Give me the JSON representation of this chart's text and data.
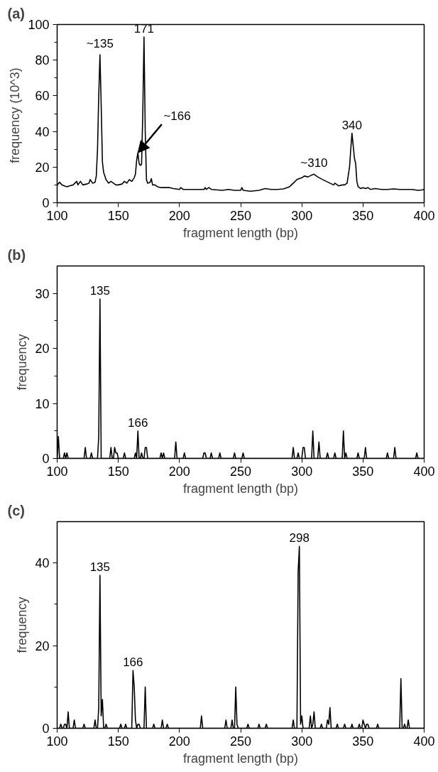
{
  "chart_data": [
    {
      "type": "line",
      "title": "(a)",
      "xlabel": "fragment length (bp)",
      "ylabel": "frequency  (10^3)",
      "xlim": [
        100,
        400
      ],
      "ylim": [
        0,
        100
      ],
      "xticks": [
        100,
        150,
        200,
        250,
        300,
        350,
        400
      ],
      "yticks": [
        0,
        20,
        40,
        60,
        80,
        100
      ],
      "series": [
        {
          "color": "#000000",
          "x": [
            100,
            102,
            104,
            108,
            110,
            113,
            116,
            117,
            119,
            121,
            124,
            126,
            127,
            129,
            131,
            132,
            133,
            134,
            135,
            136,
            137,
            138,
            140,
            142,
            144,
            146,
            148,
            150,
            153,
            155,
            157,
            159,
            161,
            163,
            164,
            165,
            166,
            167,
            168,
            169,
            170,
            171,
            172,
            173,
            174,
            176,
            177,
            178,
            180,
            182,
            185,
            188,
            192,
            195,
            200,
            201,
            203,
            210,
            215,
            220,
            221,
            222,
            224,
            226,
            235,
            240,
            245,
            250,
            251,
            252,
            258,
            265,
            270,
            275,
            280,
            285,
            290,
            293,
            296,
            300,
            302,
            305,
            308,
            310,
            313,
            317,
            320,
            323,
            326,
            327,
            330,
            333,
            335,
            337,
            339,
            340,
            341,
            342,
            343,
            344,
            345,
            346,
            348,
            350,
            352,
            354,
            356,
            360,
            365,
            370,
            375,
            380,
            385,
            390,
            395,
            398,
            400
          ],
          "values": [
            10,
            11.5,
            10,
            9,
            9.5,
            10,
            12,
            10,
            12,
            10,
            10.5,
            11,
            13,
            11,
            11.5,
            15,
            30,
            60,
            83,
            55,
            23,
            17,
            13,
            11,
            12,
            11,
            10,
            10,
            10.5,
            12,
            11,
            13,
            12,
            14,
            16,
            24,
            28,
            22,
            21,
            21.5,
            50,
            93,
            40,
            13,
            11,
            11.5,
            13.5,
            10,
            10,
            9,
            8.5,
            8.5,
            8.5,
            8,
            7.5,
            8.5,
            7.5,
            7.5,
            7.5,
            7.5,
            8.5,
            7.5,
            8.5,
            7.5,
            7,
            7.5,
            7,
            7,
            8.5,
            7,
            6.5,
            7,
            8,
            7.5,
            7.5,
            7.8,
            9,
            11,
            13,
            14,
            15,
            14.5,
            15.5,
            16,
            14.5,
            13,
            12,
            11,
            10,
            11,
            9.5,
            10,
            10,
            11,
            20,
            30,
            39,
            32,
            25,
            22,
            12,
            9,
            8,
            8.5,
            8,
            8.5,
            7.5,
            8,
            7.5,
            7.5,
            7.8,
            7.5,
            7.5,
            7.5,
            7,
            7.2,
            7.5
          ]
        }
      ],
      "annotations": [
        {
          "text": "~135",
          "x": 135,
          "y": 83
        },
        {
          "text": "171",
          "x": 171,
          "y": 93
        },
        {
          "text": "~166",
          "x": 166,
          "y": 28
        },
        {
          "text": "~310",
          "x": 310,
          "y": 16
        },
        {
          "text": "340",
          "x": 341,
          "y": 39
        }
      ]
    },
    {
      "type": "line",
      "title": "(b)",
      "xlabel": "fragment length (bp)",
      "ylabel": "frequency",
      "xlim": [
        100,
        400
      ],
      "ylim": [
        0,
        35
      ],
      "xticks": [
        100,
        150,
        200,
        250,
        300,
        350,
        400
      ],
      "yticks": [
        0,
        10,
        20,
        30
      ],
      "series": [
        {
          "color": "#000000",
          "x": [
            100,
            101,
            102,
            105,
            106,
            107,
            108,
            109,
            122,
            123,
            124,
            127,
            128,
            129,
            133,
            134,
            135,
            136,
            143,
            144,
            145,
            146,
            147,
            148,
            149,
            150,
            154,
            155,
            156,
            163,
            164,
            165,
            166,
            167,
            168,
            169,
            170,
            171,
            172,
            173,
            174,
            184,
            185,
            186,
            187,
            188,
            196,
            197,
            198,
            203,
            204,
            205,
            219,
            220,
            221,
            222,
            225,
            226,
            227,
            232,
            233,
            234,
            244,
            245,
            246,
            251,
            252,
            253,
            292,
            293,
            294,
            296,
            297,
            298,
            300,
            301,
            302,
            303,
            308,
            309,
            310,
            313,
            314,
            315,
            320,
            321,
            322,
            326,
            327,
            328,
            333,
            334,
            335,
            336,
            337,
            345,
            346,
            347,
            351,
            352,
            353,
            369,
            370,
            371,
            375,
            376,
            377,
            393,
            394,
            395,
            400
          ],
          "values": [
            0,
            4,
            0,
            0,
            1,
            0,
            1,
            0,
            0,
            2,
            0,
            0,
            1,
            0,
            0,
            4,
            29,
            0,
            0,
            2,
            0,
            0,
            2,
            1,
            1,
            0,
            0,
            1,
            0,
            0,
            1,
            0,
            5,
            0,
            0,
            1,
            0,
            0,
            2,
            2,
            0,
            0,
            1,
            0,
            1,
            0,
            0,
            3,
            0,
            0,
            1,
            0,
            0,
            1,
            1,
            0,
            0,
            1,
            0,
            0,
            1,
            0,
            0,
            1,
            0,
            0,
            1,
            0,
            0,
            2,
            0,
            0,
            1,
            0,
            0,
            2,
            2,
            0,
            0,
            5,
            0,
            0,
            3,
            0,
            0,
            1,
            0,
            0,
            1,
            0,
            0,
            5,
            0,
            1,
            0,
            0,
            1,
            0,
            0,
            2,
            0,
            0,
            1,
            0,
            0,
            2,
            0,
            0,
            1,
            0,
            0
          ]
        }
      ],
      "annotations": [
        {
          "text": "135",
          "x": 135,
          "y": 29
        },
        {
          "text": "166",
          "x": 166,
          "y": 5
        }
      ]
    },
    {
      "type": "line",
      "title": "(c)",
      "xlabel": "fragment length (bp)",
      "ylabel": "frequency",
      "xlim": [
        100,
        400
      ],
      "ylim": [
        0,
        50
      ],
      "xticks": [
        100,
        150,
        200,
        250,
        300,
        350,
        400
      ],
      "yticks": [
        0,
        20,
        40
      ],
      "series": [
        {
          "color": "#000000",
          "x": [
            100,
            102,
            103,
            104,
            105,
            106,
            107,
            108,
            109,
            110,
            113,
            114,
            115,
            121,
            122,
            123,
            130,
            131,
            132,
            133,
            134,
            135,
            136,
            137,
            138,
            139,
            140,
            141,
            151,
            152,
            153,
            155,
            156,
            157,
            161,
            162,
            163,
            164,
            165,
            166,
            167,
            168,
            171,
            172,
            173,
            178,
            179,
            180,
            185,
            186,
            187,
            189,
            190,
            191,
            217,
            218,
            219,
            237,
            238,
            239,
            242,
            243,
            244,
            245,
            246,
            247,
            248,
            255,
            256,
            257,
            264,
            265,
            266,
            270,
            271,
            272,
            292,
            293,
            294,
            296,
            297,
            298,
            299,
            300,
            301,
            306,
            307,
            308,
            309,
            310,
            311,
            315,
            316,
            317,
            320,
            321,
            322,
            323,
            324,
            328,
            329,
            330,
            334,
            335,
            336,
            340,
            341,
            342,
            346,
            347,
            348,
            349,
            350,
            351,
            352,
            353,
            354,
            355,
            361,
            362,
            363,
            380,
            381,
            382,
            383,
            384,
            385,
            386,
            387,
            388,
            400
          ],
          "values": [
            0,
            0,
            1,
            0,
            0,
            1,
            1,
            0,
            4,
            0,
            0,
            2,
            0,
            0,
            1,
            0,
            0,
            2,
            0,
            0,
            5,
            37,
            3,
            7,
            0,
            0,
            1,
            0,
            0,
            1,
            0,
            0,
            1,
            0,
            0,
            14,
            10,
            2,
            0,
            1,
            1,
            0,
            0,
            10,
            0,
            0,
            1,
            0,
            0,
            2,
            0,
            0,
            1,
            0,
            0,
            3,
            0,
            0,
            2,
            0,
            0,
            2,
            0,
            0,
            10,
            1,
            0,
            0,
            1,
            0,
            0,
            1,
            0,
            0,
            1,
            0,
            0,
            2,
            0,
            0,
            38,
            44,
            1,
            3,
            0,
            0,
            3,
            0,
            1,
            4,
            0,
            0,
            1,
            0,
            0,
            2,
            1,
            5,
            0,
            0,
            1,
            0,
            0,
            1,
            0,
            0,
            1,
            0,
            0,
            1,
            0,
            0,
            2,
            1,
            0,
            1,
            1,
            0,
            0,
            1,
            0,
            0,
            12,
            0,
            0,
            1,
            0,
            0,
            2,
            0,
            0
          ]
        }
      ],
      "annotations": [
        {
          "text": "135",
          "x": 135,
          "y": 37
        },
        {
          "text": "166",
          "x": 162,
          "y": 14
        },
        {
          "text": "298",
          "x": 298,
          "y": 44
        }
      ]
    }
  ]
}
